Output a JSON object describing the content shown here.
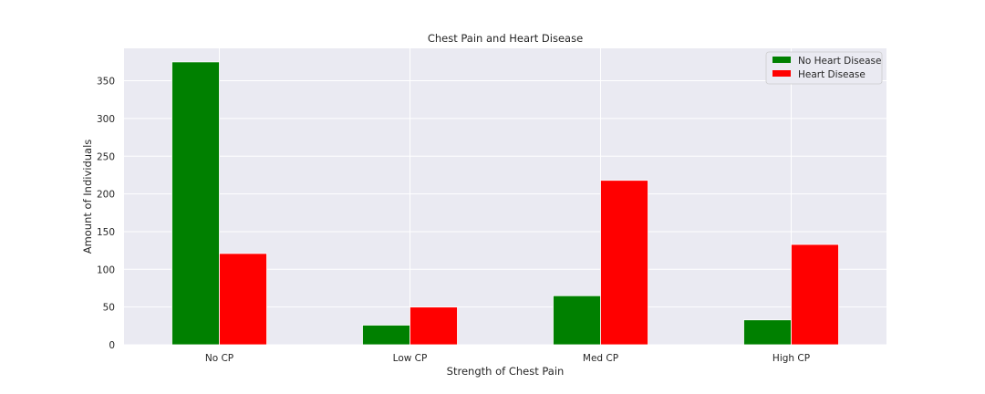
{
  "chart_data": {
    "type": "bar",
    "title": "Chest Pain and Heart Disease",
    "xlabel": "Strength of Chest Pain",
    "ylabel": "Amount of Individuals",
    "categories": [
      "No CP",
      "Low CP",
      "Med CP",
      "High CP"
    ],
    "series": [
      {
        "name": "No Heart Disease",
        "values": [
          375,
          26,
          65,
          33
        ],
        "color": "#008000"
      },
      {
        "name": "Heart Disease",
        "values": [
          121,
          50,
          218,
          133
        ],
        "color": "#ff0000"
      }
    ],
    "ylim": [
      0,
      393
    ],
    "yticks": [
      0,
      50,
      100,
      150,
      200,
      250,
      300,
      350
    ],
    "grid": true,
    "legend_position": "top-right",
    "plot_background": "#eaeaf2",
    "grid_color": "#ffffff"
  }
}
